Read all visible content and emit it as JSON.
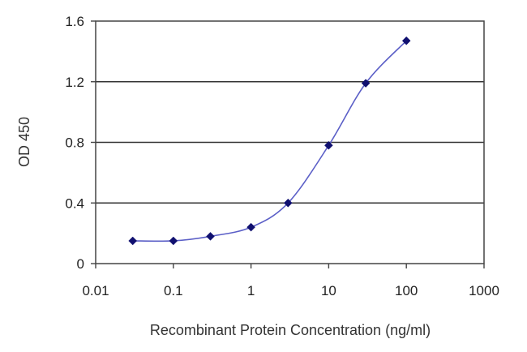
{
  "chart_data": {
    "type": "line",
    "xscale": "log",
    "xlabel": "Recombinant Protein Concentration (ng/ml)",
    "ylabel": "OD 450",
    "xlim": [
      0.01,
      1000
    ],
    "ylim": [
      0,
      1.6
    ],
    "x_ticks": [
      0.01,
      0.1,
      1,
      10,
      100,
      1000
    ],
    "x_tick_labels": [
      "0.01",
      "0.1",
      "1",
      "10",
      "100",
      "1000"
    ],
    "y_ticks": [
      0,
      0.4,
      0.8,
      1.2,
      1.6
    ],
    "y_tick_labels": [
      "0",
      "0.4",
      "0.8",
      "1.2",
      "1.6"
    ],
    "grid": "horizontal",
    "legend": "none",
    "series": [
      {
        "x": [
          0.03,
          0.1,
          0.3,
          1,
          3,
          10,
          30,
          100
        ],
        "y": [
          0.15,
          0.15,
          0.18,
          0.24,
          0.4,
          0.78,
          1.19,
          1.47
        ],
        "color": "#5b5fc7",
        "marker_color": "#101070"
      }
    ]
  }
}
